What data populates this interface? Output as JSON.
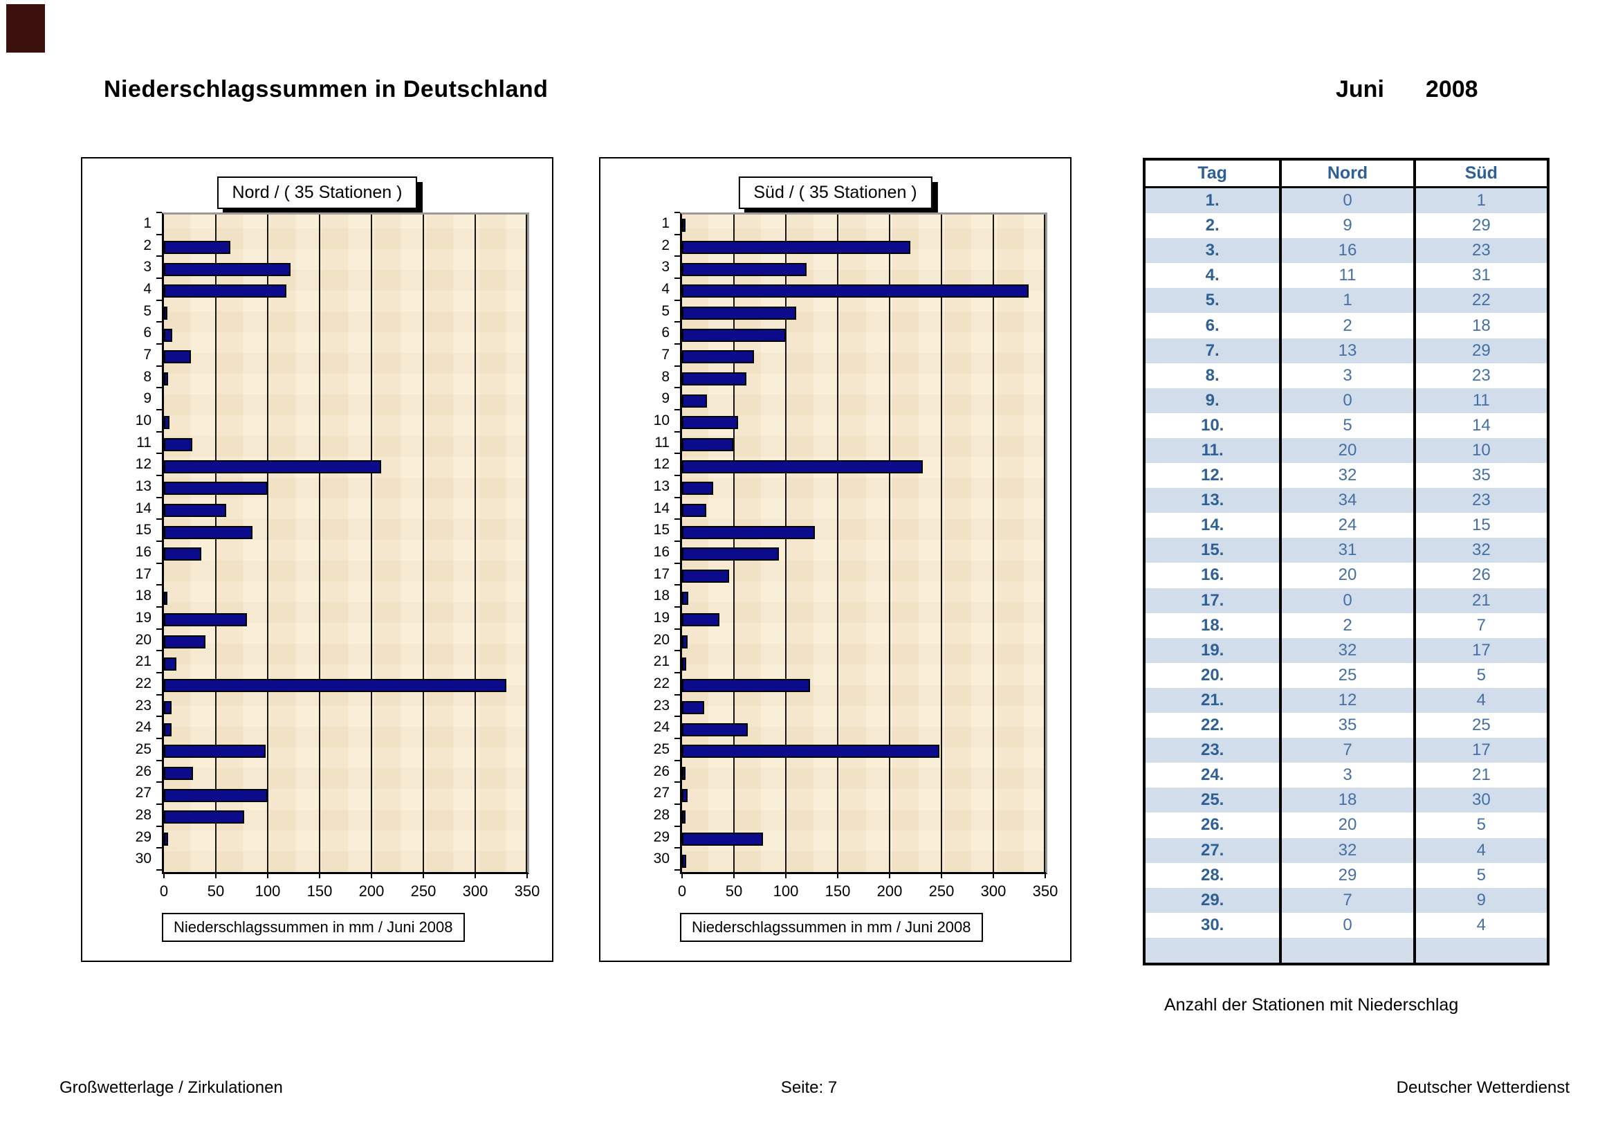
{
  "page": {
    "title": "Niederschlagssummen in Deutschland",
    "month": "Juni",
    "year": "2008",
    "caption": "Anzahl der Stationen mit Niederschlag",
    "footer_left": "Großwetterlage / Zirkulationen",
    "footer_center": "Seite: 7",
    "footer_right": "Deutscher Wetterdienst"
  },
  "colors": {
    "bar_fill": "#0b0b8b",
    "bar_border": "#000000",
    "plot_background": "#f8ecd2",
    "plot_shadow": "#9a9a9a",
    "table_header_text": "#2e6096",
    "table_value_text": "#446fa5",
    "table_alt_row": "#d2ddec"
  },
  "chart_data": [
    {
      "type": "bar",
      "orientation": "horizontal",
      "title": "Nord  /  ( 35 Stationen )",
      "xlabel": "Niederschlagssummen in mm / Juni 2008",
      "xlim": [
        0,
        350
      ],
      "xticks": [
        "0",
        "50",
        "100",
        "150",
        "200",
        "250",
        "300",
        "350"
      ],
      "grid": true,
      "categories": [
        "1",
        "2",
        "3",
        "4",
        "5",
        "6",
        "7",
        "8",
        "9",
        "10",
        "11",
        "12",
        "13",
        "14",
        "15",
        "16",
        "17",
        "18",
        "19",
        "20",
        "21",
        "22",
        "23",
        "24",
        "25",
        "26",
        "27",
        "28",
        "29",
        "30"
      ],
      "values": [
        0,
        64,
        122,
        118,
        3,
        8,
        26,
        4,
        0,
        5,
        27,
        209,
        100,
        60,
        85,
        36,
        0,
        1,
        80,
        40,
        12,
        330,
        7,
        7,
        98,
        28,
        100,
        77,
        4,
        0
      ]
    },
    {
      "type": "bar",
      "orientation": "horizontal",
      "title": "Süd  /  ( 35 Stationen )",
      "xlabel": "Niederschlagssummen in mm / Juni 2008",
      "xlim": [
        0,
        350
      ],
      "xticks": [
        "0",
        "50",
        "100",
        "150",
        "200",
        "250",
        "300",
        "350"
      ],
      "grid": true,
      "categories": [
        "1",
        "2",
        "3",
        "4",
        "5",
        "6",
        "7",
        "8",
        "9",
        "10",
        "11",
        "12",
        "13",
        "14",
        "15",
        "16",
        "17",
        "18",
        "19",
        "20",
        "21",
        "22",
        "23",
        "24",
        "25",
        "26",
        "27",
        "28",
        "29",
        "30"
      ],
      "values": [
        3,
        220,
        120,
        334,
        110,
        100,
        69,
        62,
        24,
        54,
        49,
        232,
        30,
        23,
        128,
        93,
        45,
        6,
        36,
        5,
        4,
        123,
        21,
        63,
        248,
        3,
        5,
        2,
        78,
        4
      ]
    }
  ],
  "table": {
    "headers": [
      "Tag",
      "Nord",
      "Süd"
    ],
    "rows": [
      [
        "1.",
        0,
        1
      ],
      [
        "2.",
        9,
        29
      ],
      [
        "3.",
        16,
        23
      ],
      [
        "4.",
        11,
        31
      ],
      [
        "5.",
        1,
        22
      ],
      [
        "6.",
        2,
        18
      ],
      [
        "7.",
        13,
        29
      ],
      [
        "8.",
        3,
        23
      ],
      [
        "9.",
        0,
        11
      ],
      [
        "10.",
        5,
        14
      ],
      [
        "11.",
        20,
        10
      ],
      [
        "12.",
        32,
        35
      ],
      [
        "13.",
        34,
        23
      ],
      [
        "14.",
        24,
        15
      ],
      [
        "15.",
        31,
        32
      ],
      [
        "16.",
        20,
        26
      ],
      [
        "17.",
        0,
        21
      ],
      [
        "18.",
        2,
        7
      ],
      [
        "19.",
        32,
        17
      ],
      [
        "20.",
        25,
        5
      ],
      [
        "21.",
        12,
        4
      ],
      [
        "22.",
        35,
        25
      ],
      [
        "23.",
        7,
        17
      ],
      [
        "24.",
        3,
        21
      ],
      [
        "25.",
        18,
        30
      ],
      [
        "26.",
        20,
        5
      ],
      [
        "27.",
        32,
        4
      ],
      [
        "28.",
        29,
        5
      ],
      [
        "29.",
        7,
        9
      ],
      [
        "30.",
        0,
        4
      ]
    ]
  }
}
